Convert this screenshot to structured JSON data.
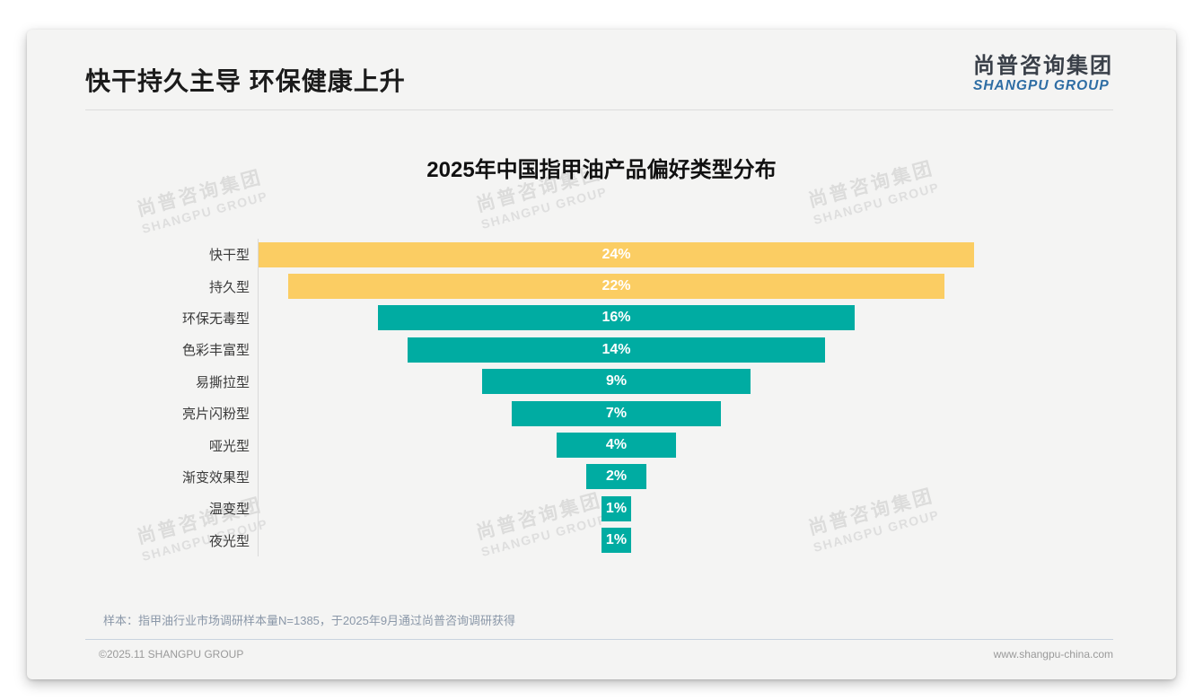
{
  "page": {
    "title": "快干持久主导 环保健康上升",
    "logo": {
      "cn": "尚普咨询集团",
      "en": "SHANGPU GROUP"
    },
    "watermark": {
      "cn": "尚普咨询集团",
      "en": "SHANGPU GROUP"
    },
    "footnote": "样本：指甲油行业市场调研样本量N=1385，于2025年9月通过尚普咨询调研获得",
    "footer": {
      "left": "©2025.11 SHANGPU GROUP",
      "right": "www.shangpu-china.com"
    }
  },
  "chart_data": {
    "type": "bar",
    "variant": "horizontal-centered-funnel",
    "title": "2025年中国指甲油产品偏好类型分布",
    "categories": [
      "快干型",
      "持久型",
      "环保无毒型",
      "色彩丰富型",
      "易撕拉型",
      "亮片闪粉型",
      "哑光型",
      "渐变效果型",
      "温变型",
      "夜光型"
    ],
    "values": [
      24,
      22,
      16,
      14,
      9,
      7,
      4,
      2,
      1,
      1
    ],
    "data_labels": [
      "24%",
      "22%",
      "16%",
      "14%",
      "9%",
      "7%",
      "4%",
      "2%",
      "1%",
      "1%"
    ],
    "unit": "%",
    "xlim": [
      0,
      24
    ],
    "grid": false,
    "legend": false,
    "highlight_count": 2,
    "colors": {
      "highlight": "#fbcd63",
      "default": "#00aca2",
      "label_text": "#ffffff",
      "axis_line": "#d9d9d9"
    }
  }
}
